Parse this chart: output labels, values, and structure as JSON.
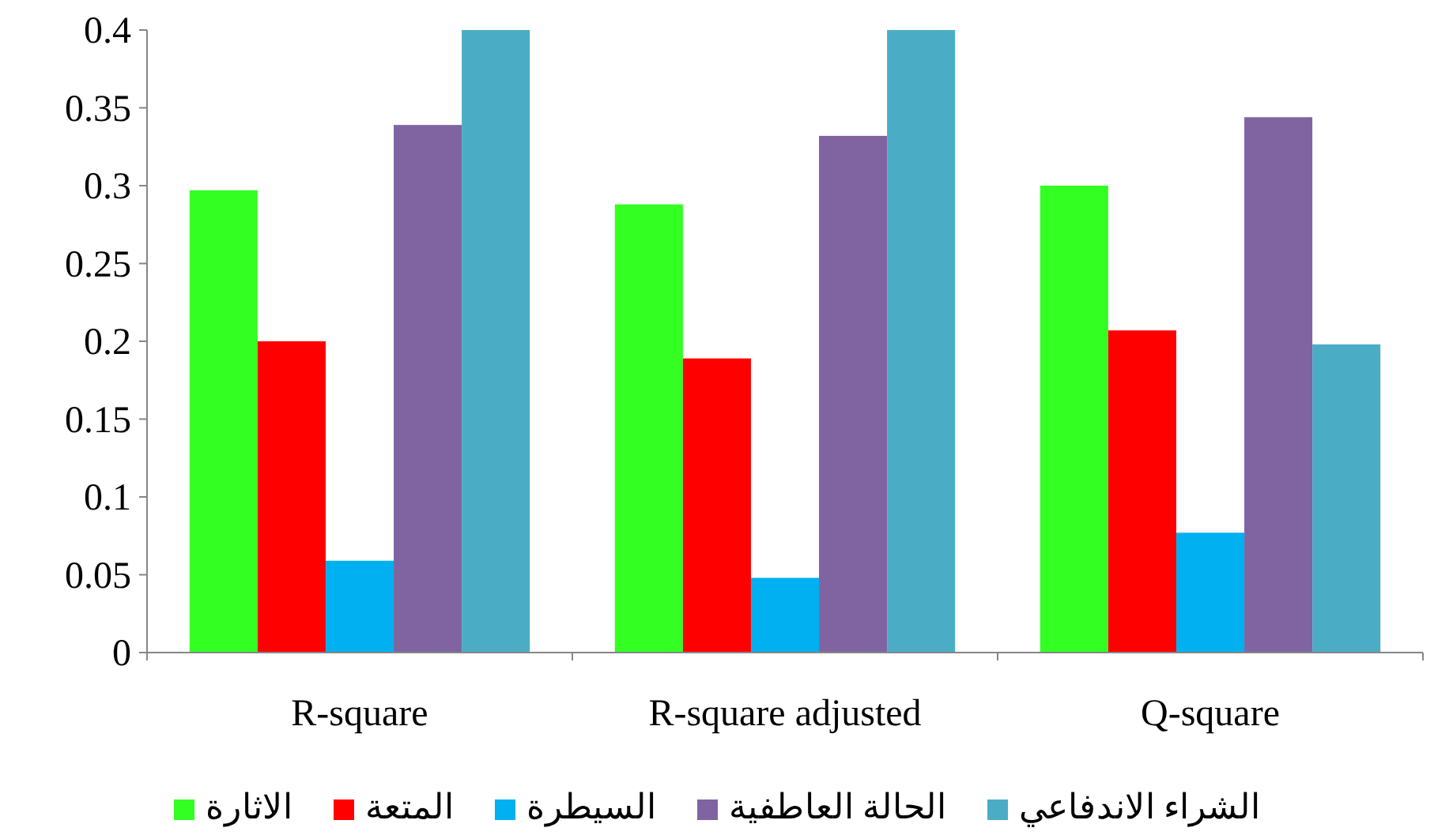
{
  "chart_data": {
    "type": "bar",
    "categories": [
      "R-square",
      "R-square adjusted",
      "Q-square"
    ],
    "series": [
      {
        "name": "الاثارة",
        "color": "#33ff22",
        "values": [
          0.297,
          0.288,
          0.3
        ]
      },
      {
        "name": "المتعة",
        "color": "#ff0000",
        "values": [
          0.2,
          0.189,
          0.207
        ]
      },
      {
        "name": "السيطرة",
        "color": "#00b0f0",
        "values": [
          0.059,
          0.048,
          0.077
        ]
      },
      {
        "name": "الحالة العاطفية",
        "color": "#8064a2",
        "values": [
          0.339,
          0.332,
          0.344
        ]
      },
      {
        "name": "الشراء الاندفاعي",
        "color": "#4bacc6",
        "values": [
          0.4,
          0.4,
          0.198
        ]
      }
    ],
    "ylim": [
      0,
      0.4
    ],
    "yticks": [
      0,
      0.05,
      0.1,
      0.15,
      0.2,
      0.25,
      0.3,
      0.35,
      0.4
    ],
    "legend": "bottom"
  }
}
